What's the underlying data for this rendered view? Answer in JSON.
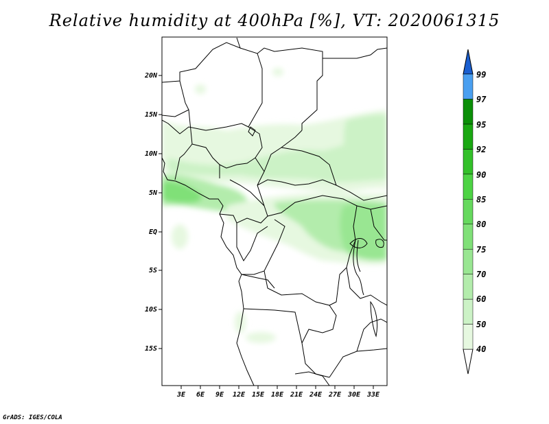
{
  "title": "Relative humidity at 400hPa [%], VT: 2020061315",
  "credit": "GrADS: IGES/COLA",
  "map": {
    "lat_ticks": [
      "20N",
      "15N",
      "10N",
      "5N",
      "EQ",
      "5S",
      "10S",
      "15S"
    ],
    "lon_ticks": [
      "3E",
      "6E",
      "9E",
      "12E",
      "15E",
      "18E",
      "21E",
      "24E",
      "27E",
      "30E",
      "33E"
    ]
  },
  "colorbar": {
    "labels": [
      "40",
      "50",
      "60",
      "70",
      "75",
      "80",
      "85",
      "90",
      "92",
      "95",
      "97",
      "99"
    ],
    "colors": [
      "#e6f8e0",
      "#ccf2c6",
      "#b3ecac",
      "#99e692",
      "#80e078",
      "#66d95e",
      "#4dd344",
      "#33c02a",
      "#1aa812",
      "#0b8f08",
      "#4a9ff0",
      "#2a7fe0",
      "#1a5fd0"
    ]
  },
  "chart_data": {
    "type": "heatmap",
    "title": "Relative humidity at 400hPa [%], VT: 2020061315",
    "lon_range_deg_E": [
      0,
      35
    ],
    "lat_range_deg": [
      -20,
      24
    ],
    "levels": [
      40,
      50,
      60,
      70,
      75,
      80,
      85,
      90,
      92,
      95,
      97,
      99
    ],
    "humid_regions": [
      {
        "lon": [
          0,
          8
        ],
        "lat": [
          2,
          7
        ],
        "rh_max": 85
      },
      {
        "lon": [
          3,
          33
        ],
        "lat": [
          7,
          14
        ],
        "rh_max": 70
      },
      {
        "lon": [
          25,
          34
        ],
        "lat": [
          -4,
          3
        ],
        "rh_max": 80
      },
      {
        "lon": [
          12,
          28
        ],
        "lat": [
          1,
          4
        ],
        "rh_max": 60
      }
    ]
  }
}
